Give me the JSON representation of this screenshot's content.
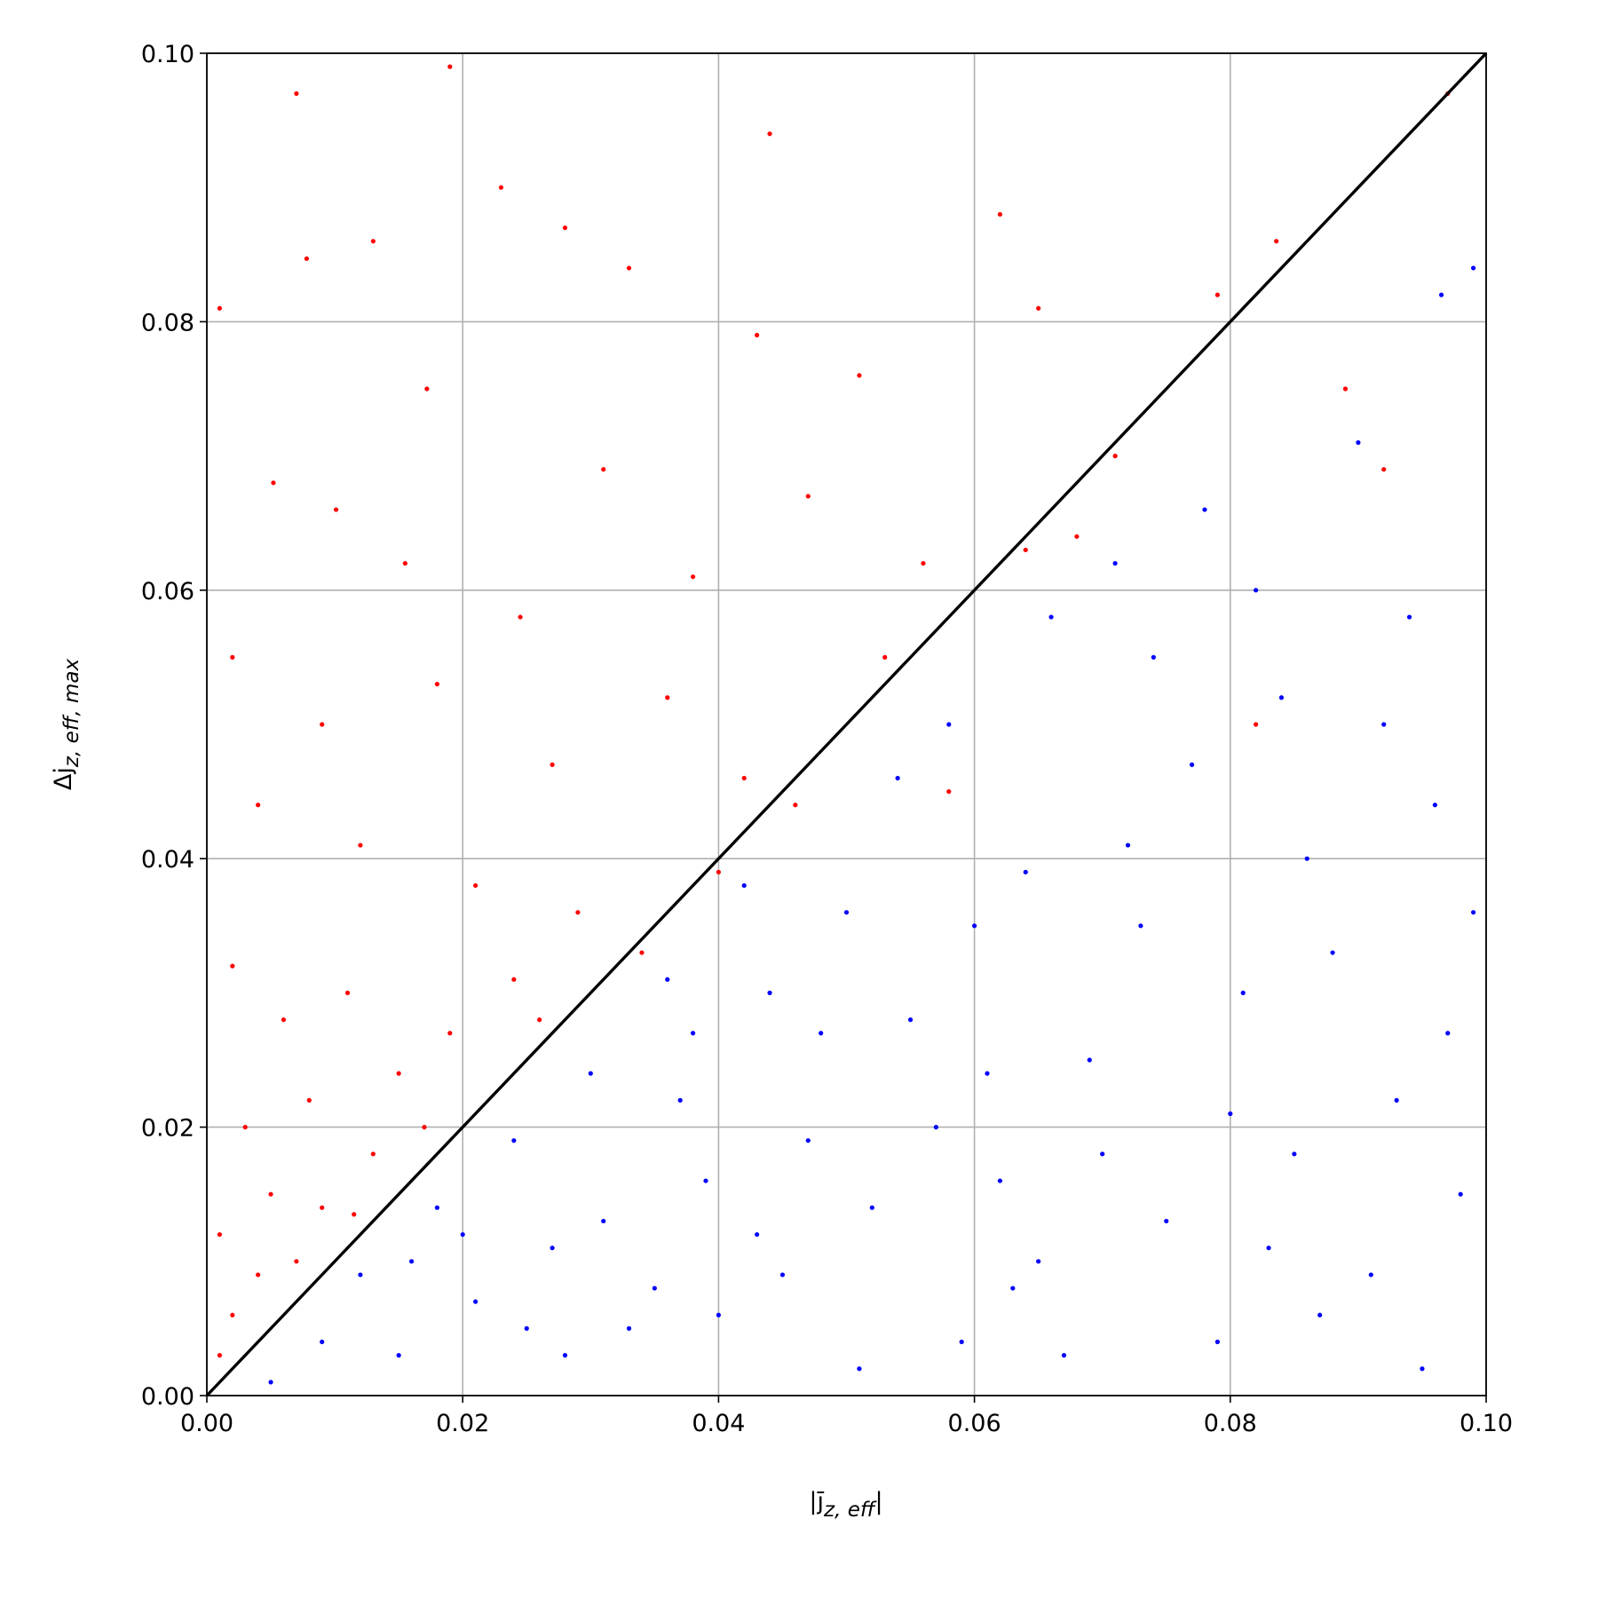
{
  "chart_data": {
    "type": "scatter",
    "x_label": {
      "base": "|j̄",
      "subscript": "z, eff",
      "close": "|"
    },
    "y_label": {
      "base": "Δj",
      "subscript": "z, eff, max"
    },
    "xlim": [
      0,
      0.1
    ],
    "ylim": [
      0,
      0.1
    ],
    "xticks": [
      {
        "value": 0,
        "label": "0.00"
      },
      {
        "value": 0.02,
        "label": "0.02"
      },
      {
        "value": 0.04,
        "label": "0.04"
      },
      {
        "value": 0.06,
        "label": "0.06"
      },
      {
        "value": 0.08,
        "label": "0.08"
      },
      {
        "value": 0.1,
        "label": "0.10"
      }
    ],
    "yticks": [
      {
        "value": 0,
        "label": "0.00"
      },
      {
        "value": 0.02,
        "label": "0.02"
      },
      {
        "value": 0.04,
        "label": "0.04"
      },
      {
        "value": 0.06,
        "label": "0.06"
      },
      {
        "value": 0.08,
        "label": "0.08"
      },
      {
        "value": 0.1,
        "label": "0.10"
      }
    ],
    "grid": true,
    "series": [
      {
        "color": "#ff0000",
        "x": [
          0.001,
          0.007,
          0.019,
          0.044,
          0.023,
          0.028,
          0.013,
          0.033,
          0.0078,
          0.062,
          0.0836,
          0.065,
          0.079,
          0.043,
          0.051,
          0.0172,
          0.0101,
          0.0052,
          0.0155,
          0.0245,
          0.031,
          0.038,
          0.047,
          0.056,
          0.002,
          0.009,
          0.018,
          0.027,
          0.036,
          0.042,
          0.004,
          0.012,
          0.021,
          0.029,
          0.034,
          0.04,
          0.053,
          0.064,
          0.071,
          0.089,
          0.097,
          0.002,
          0.006,
          0.011,
          0.015,
          0.019,
          0.024,
          0.003,
          0.008,
          0.013,
          0.017,
          0.001,
          0.005,
          0.009,
          0.002,
          0.004,
          0.007,
          0.0115,
          0.001,
          0.026,
          0.046,
          0.068,
          0.092,
          0.082,
          0.058
        ],
        "values": [
          0.081,
          0.097,
          0.099,
          0.094,
          0.09,
          0.087,
          0.086,
          0.084,
          0.0847,
          0.088,
          0.086,
          0.081,
          0.082,
          0.079,
          0.076,
          0.075,
          0.066,
          0.068,
          0.062,
          0.058,
          0.069,
          0.061,
          0.067,
          0.062,
          0.055,
          0.05,
          0.053,
          0.047,
          0.052,
          0.046,
          0.044,
          0.041,
          0.038,
          0.036,
          0.033,
          0.039,
          0.055,
          0.063,
          0.07,
          0.075,
          0.097,
          0.032,
          0.028,
          0.03,
          0.024,
          0.027,
          0.031,
          0.02,
          0.022,
          0.018,
          0.02,
          0.012,
          0.015,
          0.014,
          0.006,
          0.009,
          0.01,
          0.0135,
          0.003,
          0.028,
          0.044,
          0.064,
          0.069,
          0.05,
          0.045
        ]
      },
      {
        "color": "#0000ff",
        "x": [
          0.005,
          0.009,
          0.012,
          0.015,
          0.018,
          0.021,
          0.024,
          0.027,
          0.03,
          0.033,
          0.036,
          0.039,
          0.042,
          0.045,
          0.048,
          0.051,
          0.054,
          0.057,
          0.06,
          0.063,
          0.066,
          0.069,
          0.072,
          0.075,
          0.078,
          0.081,
          0.084,
          0.087,
          0.09,
          0.093,
          0.096,
          0.099,
          0.0965,
          0.098,
          0.028,
          0.037,
          0.044,
          0.052,
          0.059,
          0.064,
          0.07,
          0.077,
          0.083,
          0.088,
          0.094,
          0.04,
          0.047,
          0.055,
          0.062,
          0.067,
          0.073,
          0.08,
          0.086,
          0.091,
          0.097,
          0.031,
          0.035,
          0.043,
          0.05,
          0.058,
          0.065,
          0.074,
          0.079,
          0.085,
          0.092,
          0.099,
          0.02,
          0.025,
          0.016,
          0.038,
          0.061,
          0.071,
          0.082,
          0.095
        ],
        "values": [
          0.001,
          0.004,
          0.009,
          0.003,
          0.014,
          0.007,
          0.019,
          0.011,
          0.024,
          0.005,
          0.031,
          0.016,
          0.038,
          0.009,
          0.027,
          0.002,
          0.046,
          0.02,
          0.035,
          0.008,
          0.058,
          0.025,
          0.041,
          0.013,
          0.066,
          0.03,
          0.052,
          0.006,
          0.071,
          0.022,
          0.044,
          0.084,
          0.082,
          0.015,
          0.003,
          0.022,
          0.03,
          0.014,
          0.004,
          0.039,
          0.018,
          0.047,
          0.011,
          0.033,
          0.058,
          0.006,
          0.019,
          0.028,
          0.016,
          0.003,
          0.035,
          0.021,
          0.04,
          0.009,
          0.027,
          0.013,
          0.008,
          0.012,
          0.036,
          0.05,
          0.01,
          0.055,
          0.004,
          0.018,
          0.05,
          0.036,
          0.012,
          0.005,
          0.01,
          0.027,
          0.024,
          0.062,
          0.06,
          0.002
        ]
      }
    ],
    "lines": [
      {
        "color": "#000000",
        "x": [
          0,
          0.1
        ],
        "values": [
          0,
          0.1
        ]
      }
    ]
  }
}
